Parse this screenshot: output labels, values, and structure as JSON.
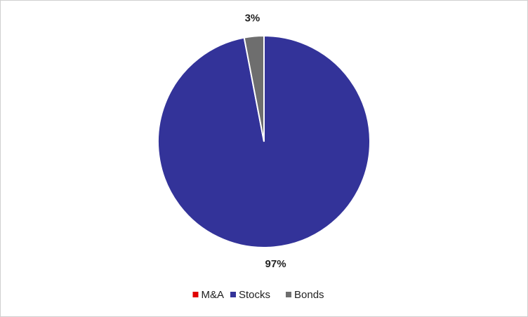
{
  "chart_data": {
    "type": "pie",
    "categories": [
      "M&A",
      "Stocks",
      "Bonds"
    ],
    "values": [
      0,
      97,
      3
    ],
    "value_labels": [
      null,
      "97%",
      "3%"
    ],
    "colors": [
      "#e00000",
      "#333399",
      "#6e6e6e"
    ],
    "legend": "bottom"
  }
}
